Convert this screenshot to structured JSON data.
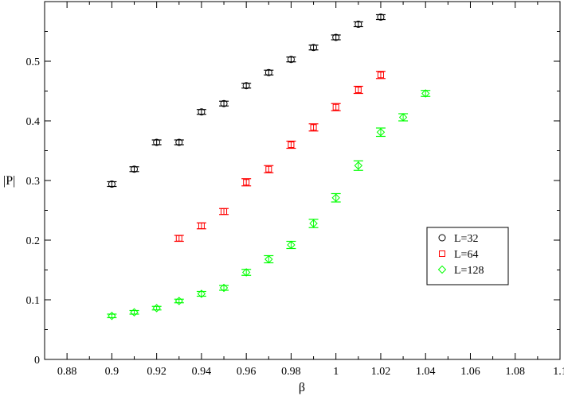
{
  "chart_data": {
    "type": "scatter",
    "title": "",
    "xlabel": "β",
    "ylabel": "|P|",
    "xlim": [
      0.87,
      1.1
    ],
    "ylim": [
      0,
      0.6
    ],
    "xticks": [
      0.88,
      0.9,
      0.92,
      0.94,
      0.96,
      0.98,
      1.0,
      1.02,
      1.04,
      1.06,
      1.08,
      1.1
    ],
    "xtick_labels": [
      "0.88",
      "0.9",
      "0.92",
      "0.94",
      "0.96",
      "0.98",
      "1",
      "1.02",
      "1.04",
      "1.06",
      "1.08",
      "1.1"
    ],
    "yticks": [
      0,
      0.1,
      0.2,
      0.3,
      0.4,
      0.5
    ],
    "ytick_labels": [
      "0",
      "0.1",
      "0.2",
      "0.3",
      "0.4",
      "0.5"
    ],
    "grid": false,
    "legend_position": "right",
    "series": [
      {
        "name": "L=32",
        "marker": "circle",
        "color": "#000000",
        "x": [
          0.9,
          0.91,
          0.92,
          0.93,
          0.94,
          0.95,
          0.96,
          0.97,
          0.98,
          0.99,
          1.0,
          1.01,
          1.02
        ],
        "y": [
          0.294,
          0.319,
          0.364,
          0.364,
          0.415,
          0.429,
          0.459,
          0.481,
          0.503,
          0.523,
          0.54,
          0.562,
          0.574
        ],
        "err": [
          0.004,
          0.004,
          0.004,
          0.004,
          0.004,
          0.004,
          0.004,
          0.004,
          0.004,
          0.004,
          0.004,
          0.004,
          0.004
        ]
      },
      {
        "name": "L=64",
        "marker": "square",
        "color": "#ff0000",
        "x": [
          0.93,
          0.94,
          0.95,
          0.96,
          0.97,
          0.98,
          0.99,
          1.0,
          1.01,
          1.02
        ],
        "y": [
          0.203,
          0.224,
          0.248,
          0.297,
          0.319,
          0.36,
          0.389,
          0.423,
          0.452,
          0.477
        ],
        "err": [
          0.005,
          0.005,
          0.005,
          0.006,
          0.006,
          0.006,
          0.006,
          0.006,
          0.006,
          0.006
        ]
      },
      {
        "name": "L=128",
        "marker": "diamond",
        "color": "#00ff00",
        "x": [
          0.9,
          0.91,
          0.92,
          0.93,
          0.94,
          0.95,
          0.96,
          0.97,
          0.98,
          0.99,
          1.0,
          1.01,
          1.02,
          1.03,
          1.04
        ],
        "y": [
          0.073,
          0.079,
          0.086,
          0.098,
          0.11,
          0.12,
          0.146,
          0.168,
          0.192,
          0.228,
          0.271,
          0.325,
          0.381,
          0.406,
          0.446
        ],
        "err": [
          0.003,
          0.003,
          0.003,
          0.003,
          0.004,
          0.004,
          0.005,
          0.006,
          0.006,
          0.007,
          0.007,
          0.008,
          0.007,
          0.006,
          0.005
        ]
      }
    ]
  }
}
